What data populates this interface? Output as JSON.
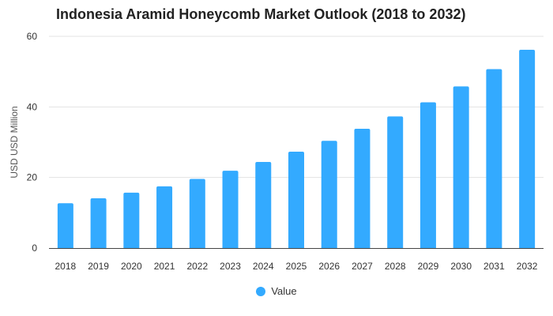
{
  "chart_data": {
    "type": "bar",
    "title": "Indonesia Aramid Honeycomb Market Outlook (2018 to 2032)",
    "xlabel": "",
    "ylabel": "USD USD Million",
    "ylim": [
      0,
      60
    ],
    "yticks": [
      0,
      20,
      40,
      60
    ],
    "grid": true,
    "legend_position": "bottom",
    "categories": [
      "2018",
      "2019",
      "2020",
      "2021",
      "2022",
      "2023",
      "2024",
      "2025",
      "2026",
      "2027",
      "2028",
      "2029",
      "2030",
      "2031",
      "2032"
    ],
    "series": [
      {
        "name": "Value",
        "color": "#33aaff",
        "values": [
          12.7,
          14.1,
          15.7,
          17.5,
          19.6,
          21.9,
          24.4,
          27.3,
          30.4,
          33.8,
          37.3,
          41.3,
          45.8,
          50.7,
          56.2
        ]
      }
    ]
  }
}
